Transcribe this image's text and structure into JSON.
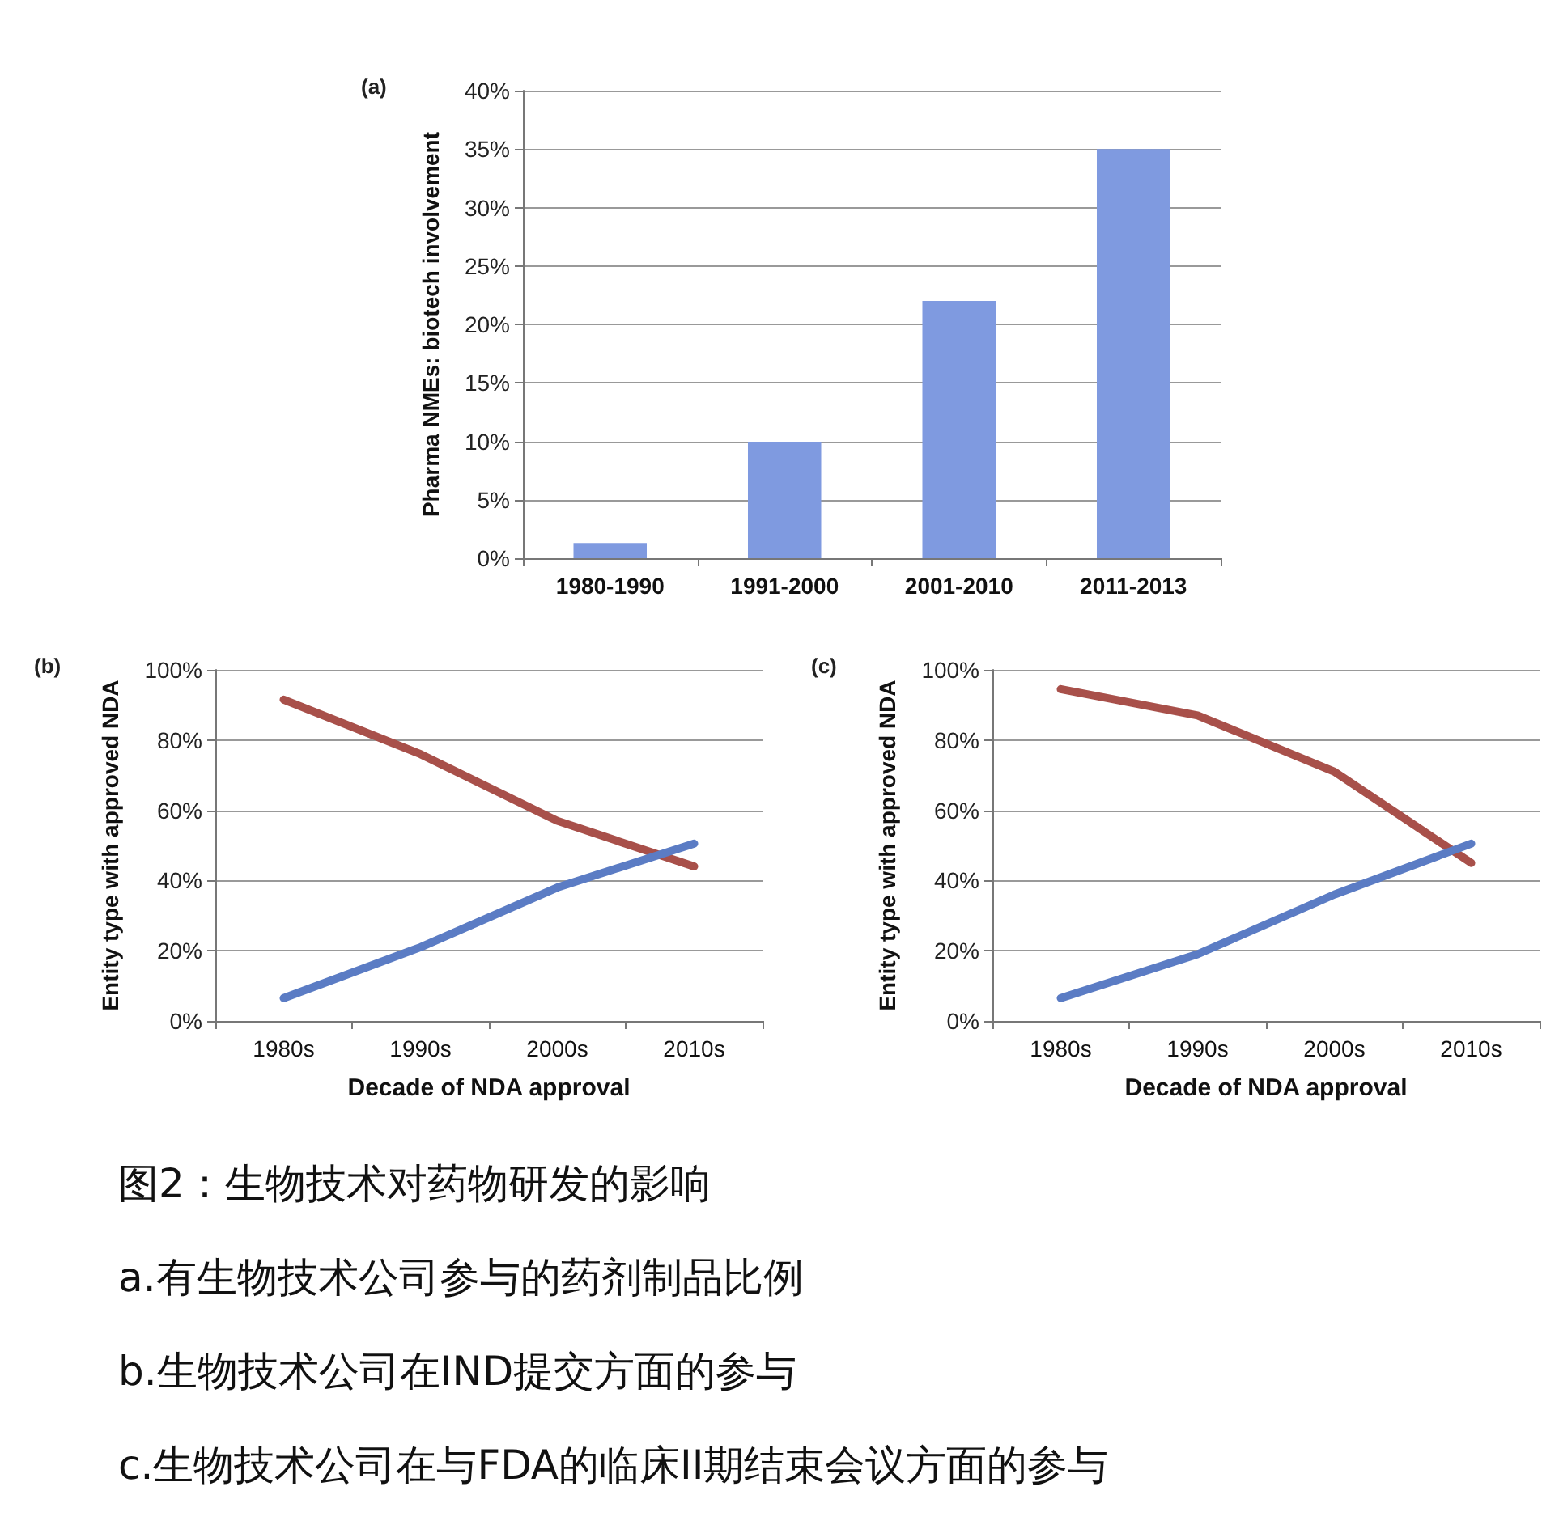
{
  "chart_data": [
    {
      "type": "bar",
      "title": "(a)",
      "ylabel": "Pharma NMEs: biotech involvement",
      "categories": [
        "1980-1990",
        "1991-2000",
        "2001-2010",
        "2011-2013"
      ],
      "values": [
        1.3,
        10,
        22,
        35
      ],
      "color": "#7f9ae0",
      "ylim": [
        0,
        40
      ],
      "yticks": [
        {
          "value": 0,
          "label": "0%"
        },
        {
          "value": 5,
          "label": "5%"
        },
        {
          "value": 10,
          "label": "10%"
        },
        {
          "value": 15,
          "label": "15%"
        },
        {
          "value": 20,
          "label": "20%"
        },
        {
          "value": 25,
          "label": "25%"
        },
        {
          "value": 30,
          "label": "30%"
        },
        {
          "value": 35,
          "label": "35%"
        },
        {
          "value": 40,
          "label": "40%"
        }
      ],
      "grid": "y"
    },
    {
      "type": "line",
      "title": "(b)",
      "xlabel": "Decade of NDA approval",
      "ylabel": "Entity type with approved NDA",
      "categories": [
        "1980s",
        "1990s",
        "2000s",
        "2010s"
      ],
      "series": [
        {
          "color": "#a8504a",
          "values": [
            91.5,
            76,
            57,
            44
          ]
        },
        {
          "color": "#5b7cc4",
          "values": [
            6.5,
            21,
            38,
            50.5
          ]
        }
      ],
      "ylim": [
        0,
        100
      ],
      "yticks": [
        {
          "value": 0,
          "label": "0%"
        },
        {
          "value": 20,
          "label": "20%"
        },
        {
          "value": 40,
          "label": "40%"
        },
        {
          "value": 60,
          "label": "60%"
        },
        {
          "value": 80,
          "label": "80%"
        },
        {
          "value": 100,
          "label": "100%"
        }
      ],
      "grid": "y",
      "marker": "none",
      "line_style": "solid"
    },
    {
      "type": "line",
      "title": "(c)",
      "xlabel": "Decade of NDA approval",
      "ylabel": "Entity type with approved NDA",
      "categories": [
        "1980s",
        "1990s",
        "2000s",
        "2010s"
      ],
      "series": [
        {
          "color": "#a8504a",
          "values": [
            94.5,
            87,
            71,
            45
          ]
        },
        {
          "color": "#5b7cc4",
          "values": [
            6.5,
            19,
            36,
            50.5
          ]
        }
      ],
      "ylim": [
        0,
        100
      ],
      "yticks": [
        {
          "value": 0,
          "label": "0%"
        },
        {
          "value": 20,
          "label": "20%"
        },
        {
          "value": 40,
          "label": "40%"
        },
        {
          "value": 60,
          "label": "60%"
        },
        {
          "value": 80,
          "label": "80%"
        },
        {
          "value": 100,
          "label": "100%"
        }
      ],
      "grid": "y",
      "marker": "none",
      "line_style": "solid"
    },
    {
      "type": "other",
      "annotations": [
        "图2：生物技术对药物研发的影响",
        "a.有生物技术公司参与的药剂制品比例",
        "b.生物技术公司在IND提交方面的参与",
        "c.生物技术公司在与FDA的临床II期结束会议方面的参与"
      ]
    }
  ]
}
